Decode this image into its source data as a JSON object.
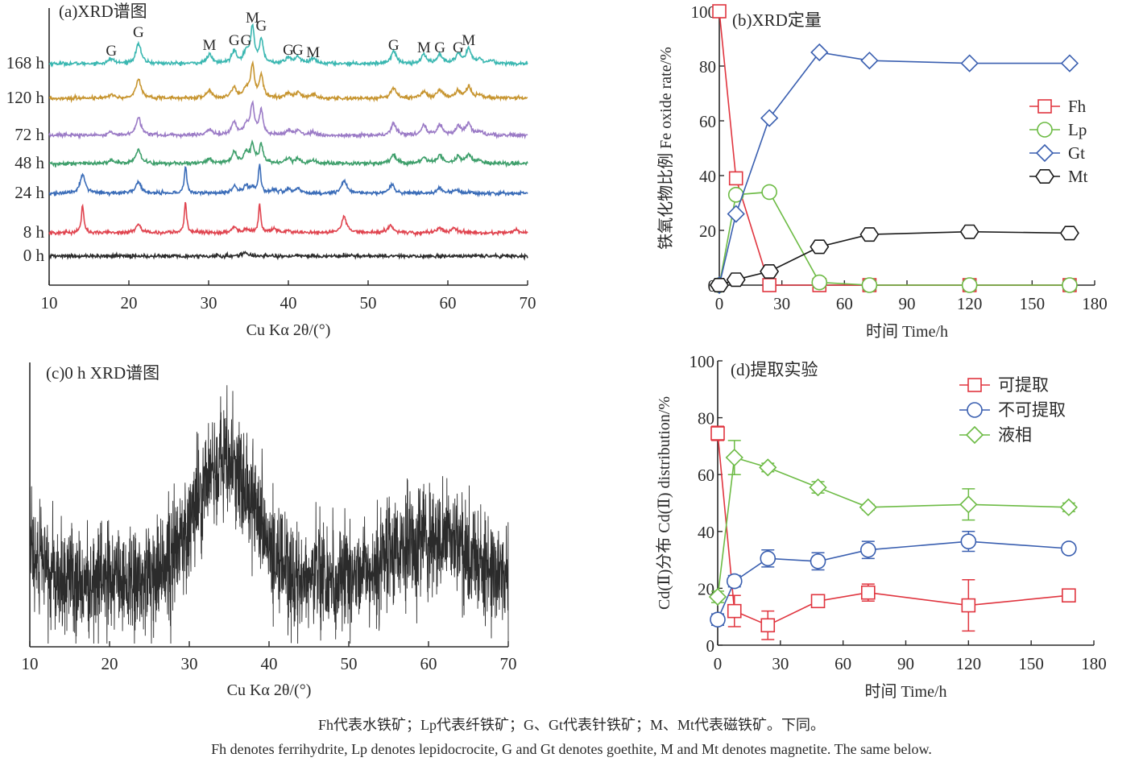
{
  "captions": {
    "zh": "Fh代表水铁矿；Lp代表纤铁矿；G、Gt代表针铁矿；M、Mt代表磁铁矿。下同。",
    "en": "Fh denotes ferrihydrite, Lp denotes lepidocrocite, G and Gt denotes goethite, M and Mt denotes magnetite. The same below."
  },
  "chart_data": [
    {
      "id": "a",
      "type": "line",
      "title": "(a)XRD谱图",
      "xlabel": "Cu Kα 2θ/(°)",
      "ylabel": "",
      "xlim": [
        10,
        70
      ],
      "xticks": [
        10,
        20,
        30,
        40,
        50,
        60,
        70
      ],
      "y_ticks_shown": false,
      "peak_annotations": [
        {
          "x": 17.8,
          "label": "G"
        },
        {
          "x": 21.2,
          "label": "G"
        },
        {
          "x": 30.1,
          "label": "M"
        },
        {
          "x": 33.2,
          "label": "G"
        },
        {
          "x": 34.7,
          "label": "G"
        },
        {
          "x": 35.5,
          "label": "M"
        },
        {
          "x": 36.6,
          "label": "G"
        },
        {
          "x": 40.0,
          "label": "G"
        },
        {
          "x": 41.2,
          "label": "G"
        },
        {
          "x": 43.1,
          "label": "M"
        },
        {
          "x": 53.2,
          "label": "G"
        },
        {
          "x": 57.0,
          "label": "M"
        },
        {
          "x": 59.0,
          "label": "G"
        },
        {
          "x": 61.3,
          "label": "G"
        },
        {
          "x": 62.6,
          "label": "M"
        }
      ],
      "series": [
        {
          "name": "168 h",
          "color": "#3ab7b1",
          "offset": 6.2,
          "peaks": [
            [
              17.8,
              0.5
            ],
            [
              21.2,
              2.1
            ],
            [
              30.1,
              0.9
            ],
            [
              33.2,
              1.3
            ],
            [
              34.7,
              1.1
            ],
            [
              35.5,
              3.7
            ],
            [
              36.6,
              2.4
            ],
            [
              40.0,
              0.6
            ],
            [
              41.2,
              0.7
            ],
            [
              43.1,
              0.5
            ],
            [
              53.2,
              1.3
            ],
            [
              57.0,
              0.9
            ],
            [
              59.0,
              0.9
            ],
            [
              61.3,
              0.9
            ],
            [
              62.6,
              1.5
            ],
            [
              64.0,
              0.4
            ],
            [
              65.5,
              0.3
            ]
          ]
        },
        {
          "name": "120 h",
          "color": "#c79530",
          "offset": 5.0,
          "peaks": [
            [
              17.8,
              0.4
            ],
            [
              21.2,
              2.0
            ],
            [
              30.1,
              0.8
            ],
            [
              33.2,
              1.1
            ],
            [
              34.7,
              0.9
            ],
            [
              35.5,
              3.4
            ],
            [
              36.6,
              2.3
            ],
            [
              40.0,
              0.5
            ],
            [
              41.2,
              0.6
            ],
            [
              43.1,
              0.4
            ],
            [
              53.2,
              1.0
            ],
            [
              57.0,
              0.7
            ],
            [
              59.0,
              0.9
            ],
            [
              61.3,
              0.7
            ],
            [
              62.6,
              1.2
            ],
            [
              64.0,
              0.3
            ]
          ]
        },
        {
          "name": "72 h",
          "color": "#9b7bc6",
          "offset": 3.7,
          "peaks": [
            [
              17.8,
              0.3
            ],
            [
              21.2,
              1.8
            ],
            [
              30.1,
              0.6
            ],
            [
              33.2,
              1.3
            ],
            [
              34.7,
              1.0
            ],
            [
              35.5,
              3.0
            ],
            [
              36.6,
              2.5
            ],
            [
              40.0,
              0.5
            ],
            [
              41.2,
              0.5
            ],
            [
              43.1,
              0.3
            ],
            [
              53.2,
              1.2
            ],
            [
              57.0,
              1.0
            ],
            [
              59.0,
              1.1
            ],
            [
              61.3,
              0.9
            ],
            [
              62.6,
              1.2
            ],
            [
              64.0,
              0.4
            ]
          ]
        },
        {
          "name": "48 h",
          "color": "#3e9f6b",
          "offset": 2.7,
          "peaks": [
            [
              17.8,
              0.3
            ],
            [
              21.2,
              1.4
            ],
            [
              30.1,
              0.5
            ],
            [
              33.2,
              1.1
            ],
            [
              34.7,
              1.1
            ],
            [
              35.5,
              1.9
            ],
            [
              36.6,
              2.0
            ],
            [
              40.0,
              0.5
            ],
            [
              41.2,
              0.5
            ],
            [
              43.1,
              0.3
            ],
            [
              53.2,
              1.0
            ],
            [
              57.0,
              0.6
            ],
            [
              59.0,
              0.9
            ],
            [
              61.3,
              0.7
            ],
            [
              62.6,
              0.9
            ],
            [
              64.0,
              0.3
            ]
          ]
        },
        {
          "name": "24 h",
          "color": "#3a6cb8",
          "offset": 1.7,
          "peaks": [
            [
              14.2,
              1.9
            ],
            [
              21.2,
              1.2
            ],
            [
              27.1,
              2.8
            ],
            [
              33.2,
              0.7
            ],
            [
              34.7,
              0.7
            ],
            [
              35.5,
              0.5
            ],
            [
              36.4,
              2.9
            ],
            [
              38.2,
              0.4
            ],
            [
              40.0,
              0.4
            ],
            [
              41.2,
              0.4
            ],
            [
              47.0,
              1.3
            ],
            [
              53.0,
              0.9
            ],
            [
              59.0,
              0.6
            ],
            [
              61.0,
              0.4
            ]
          ]
        },
        {
          "name": "8 h",
          "color": "#e0444f",
          "offset": 0.45,
          "peaks": [
            [
              14.2,
              2.9
            ],
            [
              21.2,
              0.9
            ],
            [
              27.1,
              3.1
            ],
            [
              33.2,
              0.5
            ],
            [
              34.7,
              0.4
            ],
            [
              36.4,
              2.8
            ],
            [
              38.2,
              0.4
            ],
            [
              40.0,
              0.3
            ],
            [
              47.0,
              1.7
            ],
            [
              52.8,
              0.8
            ],
            [
              59.0,
              0.5
            ],
            [
              60.8,
              0.5
            ],
            [
              68.5,
              0.3
            ]
          ]
        },
        {
          "name": "0 h",
          "color": "#2b2b2b",
          "offset": -0.35,
          "peaks": [
            [
              34.5,
              0.35
            ]
          ]
        }
      ]
    },
    {
      "id": "b",
      "type": "line",
      "title": "(b)XRD定量",
      "xlabel": "时间 Time/h",
      "ylabel": "铁氧化物比例 Fe oxide rate/%",
      "xlim": [
        0,
        180
      ],
      "ylim": [
        0,
        100
      ],
      "xticks": [
        0,
        30,
        60,
        90,
        120,
        150,
        180
      ],
      "yticks": [
        0,
        20,
        40,
        60,
        80,
        100
      ],
      "legend_position": "right-middle",
      "x": [
        0,
        8,
        24,
        48,
        72,
        120,
        168
      ],
      "series": [
        {
          "name": "Fh",
          "marker": "square",
          "color": "#e0353f",
          "values": [
            100,
            39,
            0,
            0,
            0,
            0,
            0
          ]
        },
        {
          "name": "Lp",
          "marker": "circle",
          "color": "#6dbb45",
          "values": [
            0,
            33,
            34,
            1,
            0,
            0,
            0
          ]
        },
        {
          "name": "Gt",
          "marker": "diamond",
          "color": "#3a5fb0",
          "values": [
            0,
            26,
            61,
            85,
            82,
            81,
            81
          ]
        },
        {
          "name": "Mt",
          "marker": "hexagon",
          "color": "#1a1a1a",
          "values": [
            0,
            2,
            5,
            14,
            18.5,
            19.5,
            19
          ]
        }
      ]
    },
    {
      "id": "c",
      "type": "line",
      "title": "(c)0 h XRD谱图",
      "xlabel": "Cu Kα 2θ/(°)",
      "ylabel": "",
      "xlim": [
        10,
        70
      ],
      "xticks": [
        10,
        20,
        30,
        40,
        50,
        60,
        70
      ],
      "y_ticks_shown": false,
      "color": "#2b2b2b",
      "broad_humps": [
        [
          34.5,
          1.0,
          5.0
        ],
        [
          60.5,
          0.35,
          6.0
        ]
      ]
    },
    {
      "id": "d",
      "type": "line",
      "title": "(d)提取实验",
      "xlabel": "时间 Time/h",
      "ylabel": "Cd(Ⅱ)分布 Cd(Ⅱ) distribution/%",
      "xlim": [
        0,
        180
      ],
      "ylim": [
        0,
        100
      ],
      "xticks": [
        0,
        30,
        60,
        90,
        120,
        150,
        180
      ],
      "yticks": [
        0,
        20,
        40,
        60,
        80,
        100
      ],
      "legend_position": "top-right",
      "x": [
        0,
        8,
        24,
        48,
        72,
        120,
        168
      ],
      "series": [
        {
          "name": "可提取",
          "marker": "square",
          "color": "#e0353f",
          "values": [
            74.5,
            12,
            7,
            15.5,
            18.5,
            14,
            17.5
          ],
          "errors": [
            2.5,
            5.5,
            5,
            2,
            3,
            9,
            1
          ]
        },
        {
          "name": "不可提取",
          "marker": "circle",
          "color": "#3a5fb0",
          "values": [
            9,
            22.5,
            30.5,
            29.5,
            33.5,
            36.5,
            34
          ],
          "errors": [
            2,
            2,
            3,
            3,
            3,
            3.5,
            1.5
          ]
        },
        {
          "name": "液相",
          "marker": "diamond",
          "color": "#6dbb45",
          "values": [
            17,
            66,
            62.5,
            55.5,
            48.5,
            49.5,
            48.5
          ],
          "errors": [
            2,
            6,
            1.5,
            2,
            1,
            5.5,
            1.5
          ]
        }
      ]
    }
  ]
}
